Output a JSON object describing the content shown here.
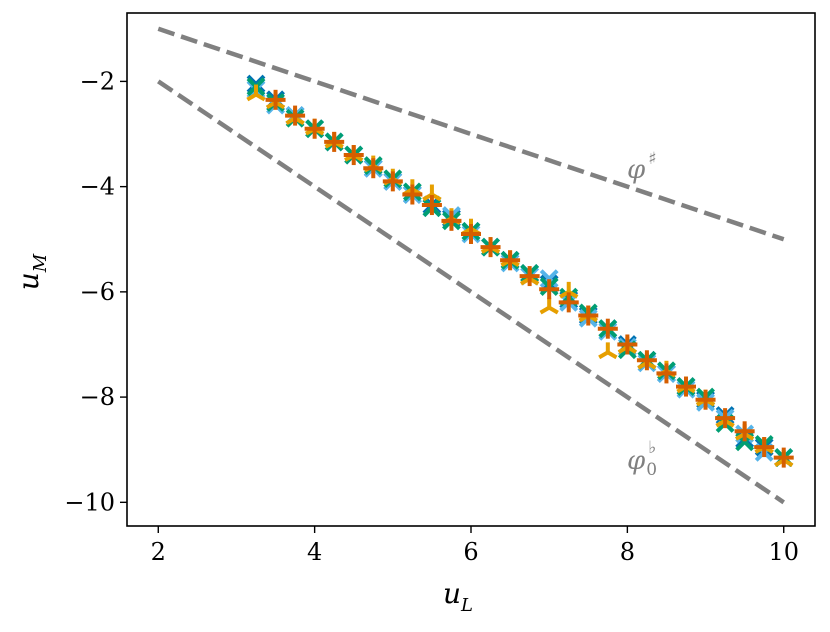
{
  "chart_data": {
    "type": "scatter",
    "title": "",
    "xlabel": {
      "main": "u",
      "sub": "L"
    },
    "ylabel": {
      "main": "u",
      "sub": "M"
    },
    "xlim": [
      1.6,
      10.4
    ],
    "ylim": [
      -10.45,
      -0.7
    ],
    "xticks": [
      2,
      4,
      6,
      8,
      10
    ],
    "yticks": [
      -2,
      -4,
      -6,
      -8,
      -10
    ],
    "xtick_labels": [
      "2",
      "4",
      "6",
      "8",
      "10"
    ],
    "ytick_labels": [
      "−2",
      "−4",
      "−6",
      "−8",
      "−10"
    ],
    "grid": false,
    "reference_lines": [
      {
        "label": {
          "main": "φ",
          "sup": "♯",
          "sub": ""
        },
        "color": "#808080",
        "dash": true,
        "x": [
          2,
          10
        ],
        "y": [
          -1,
          -5
        ]
      },
      {
        "label": {
          "main": "φ",
          "sup": "♭",
          "sub": "0"
        },
        "color": "#808080",
        "dash": true,
        "x": [
          2,
          10
        ],
        "y": [
          -2,
          -10
        ]
      }
    ],
    "series": [
      {
        "color": "#0072B2",
        "marker": "x",
        "x": [
          3.25,
          3.5,
          3.75,
          4.0,
          4.25,
          4.5,
          4.75,
          5.0,
          5.25,
          5.5,
          5.75,
          6.0,
          6.25,
          6.5,
          6.75,
          7.0,
          7.25,
          7.5,
          7.75,
          8.0,
          8.25,
          8.5,
          8.75,
          9.0,
          9.25,
          9.5,
          9.75,
          10.0
        ],
        "y": [
          -2.05,
          -2.35,
          -2.65,
          -2.9,
          -3.15,
          -3.4,
          -3.65,
          -3.9,
          -4.15,
          -4.35,
          -4.6,
          -4.85,
          -5.15,
          -5.4,
          -5.65,
          -5.85,
          -6.15,
          -6.45,
          -6.7,
          -7.0,
          -7.3,
          -7.55,
          -7.8,
          -8.05,
          -8.35,
          -8.8,
          -8.95,
          -9.15
        ]
      },
      {
        "color": "#56B4E9",
        "marker": "x",
        "x": [
          3.25,
          3.5,
          3.75,
          4.0,
          4.25,
          4.5,
          4.75,
          5.0,
          5.25,
          5.5,
          5.75,
          6.0,
          6.25,
          6.5,
          6.75,
          7.0,
          7.25,
          7.5,
          7.75,
          8.0,
          8.25,
          8.5,
          8.75,
          9.0,
          9.25,
          9.5,
          9.75,
          10.0
        ],
        "y": [
          -2.15,
          -2.45,
          -2.65,
          -2.9,
          -3.15,
          -3.4,
          -3.65,
          -3.9,
          -4.15,
          -4.4,
          -4.55,
          -4.9,
          -5.15,
          -5.45,
          -5.7,
          -5.75,
          -6.2,
          -6.5,
          -6.75,
          -7.05,
          -7.35,
          -7.55,
          -7.85,
          -8.1,
          -8.4,
          -8.7,
          -9.05,
          -9.15
        ]
      },
      {
        "color": "#009E73",
        "marker": "x",
        "x": [
          3.25,
          3.5,
          3.75,
          4.0,
          4.25,
          4.5,
          4.75,
          5.0,
          5.25,
          5.5,
          5.75,
          6.0,
          6.25,
          6.5,
          6.75,
          7.0,
          7.25,
          7.5,
          7.75,
          8.0,
          8.25,
          8.5,
          8.75,
          9.0,
          9.25,
          9.5,
          9.75,
          10.0
        ],
        "y": [
          -2.1,
          -2.4,
          -2.7,
          -2.9,
          -3.15,
          -3.4,
          -3.6,
          -3.85,
          -4.1,
          -4.4,
          -4.65,
          -4.85,
          -5.15,
          -5.4,
          -5.65,
          -5.9,
          -6.1,
          -6.4,
          -6.7,
          -7.1,
          -7.3,
          -7.5,
          -7.8,
          -8.0,
          -8.5,
          -8.85,
          -8.9,
          -9.15
        ]
      },
      {
        "color": "#E69F00",
        "marker": "tri",
        "x": [
          3.25,
          3.5,
          3.75,
          4.0,
          4.25,
          4.5,
          4.75,
          5.0,
          5.25,
          5.5,
          5.75,
          6.0,
          6.25,
          6.5,
          6.75,
          7.0,
          7.25,
          7.5,
          7.75,
          8.0,
          8.25,
          8.5,
          8.75,
          9.0,
          9.25,
          9.5,
          9.75,
          10.0
        ],
        "y": [
          -2.25,
          -2.4,
          -2.7,
          -2.9,
          -3.15,
          -3.4,
          -3.6,
          -3.85,
          -4.05,
          -4.15,
          -4.6,
          -4.8,
          -5.15,
          -5.4,
          -5.75,
          -6.3,
          -6.0,
          -6.45,
          -7.15,
          -7.05,
          -7.35,
          -7.5,
          -7.8,
          -8.05,
          -8.45,
          -8.7,
          -8.95,
          -9.2
        ]
      },
      {
        "color": "#D55E00",
        "marker": "plus",
        "x": [
          3.5,
          3.75,
          4.0,
          4.25,
          4.5,
          4.75,
          5.0,
          5.25,
          5.5,
          5.75,
          6.0,
          6.25,
          6.5,
          6.75,
          7.0,
          7.25,
          7.5,
          7.75,
          8.0,
          8.25,
          8.5,
          8.75,
          9.0,
          9.25,
          9.5,
          9.75,
          10.0
        ],
        "y": [
          -2.35,
          -2.65,
          -2.9,
          -3.15,
          -3.4,
          -3.65,
          -3.9,
          -4.15,
          -4.35,
          -4.65,
          -4.9,
          -5.15,
          -5.4,
          -5.7,
          -5.95,
          -6.2,
          -6.45,
          -6.7,
          -7.0,
          -7.3,
          -7.55,
          -7.8,
          -8.05,
          -8.4,
          -8.65,
          -8.95,
          -9.15
        ]
      }
    ]
  }
}
